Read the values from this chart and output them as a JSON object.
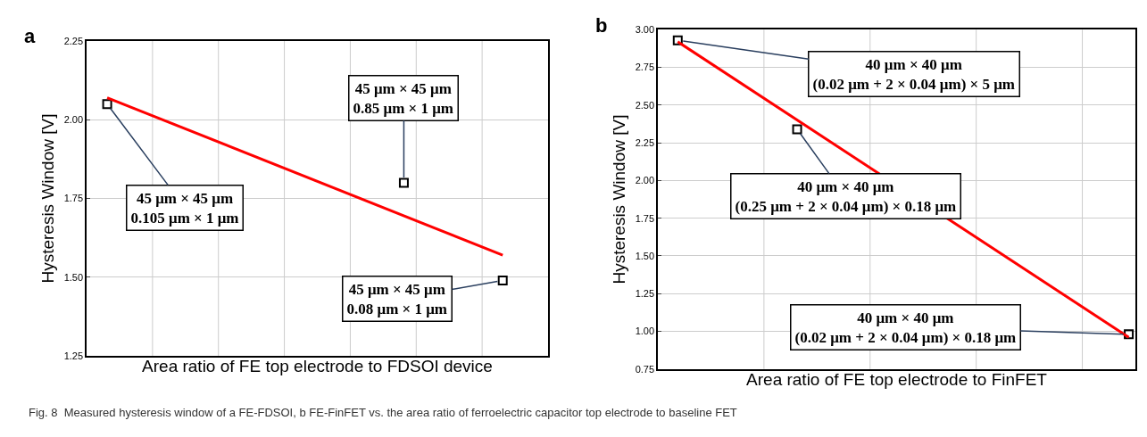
{
  "chart_data": [
    {
      "type": "scatter",
      "title": "a",
      "xlabel": "Area ratio of FE top electrode to FDSOI device",
      "ylabel": "Hysteresis Window [V]",
      "categories": [
        null,
        null,
        null,
        null,
        null,
        null,
        null,
        null,
        null,
        null,
        null,
        null,
        null,
        null,
        null,
        null,
        null,
        null,
        null,
        null,
        null,
        null,
        null,
        null,
        null,
        null,
        null,
        null,
        null,
        null,
        null,
        null,
        null,
        null,
        null,
        null,
        null,
        null,
        null,
        null,
        null,
        null,
        null,
        null,
        null,
        null,
        null,
        null,
        null,
        null,
        null,
        null,
        null,
        null,
        null,
        null
      ],
      "series": [
        {
          "type": "scatter",
          "color": "#000000",
          "marker": "square",
          "values": [
            null,
            null,
            2.05,
            null,
            null,
            null,
            null,
            null,
            null,
            null,
            null,
            null,
            null,
            null,
            null,
            null,
            null,
            null,
            null,
            null,
            null,
            null,
            null,
            null,
            null,
            null,
            null,
            null,
            null,
            null,
            null,
            null,
            null,
            null,
            null,
            null,
            null,
            null,
            1.8,
            null,
            null,
            null,
            null,
            null,
            null,
            null,
            null,
            null,
            null,
            null,
            1.49,
            null,
            null,
            null,
            null,
            null
          ]
        },
        {
          "type": "line",
          "color": "#ff0000",
          "marker": "none",
          "values": [
            null,
            null,
            2.07,
            null,
            null,
            null,
            null,
            null,
            null,
            null,
            null,
            null,
            null,
            null,
            null,
            null,
            null,
            null,
            null,
            null,
            null,
            null,
            null,
            null,
            null,
            null,
            null,
            null,
            null,
            null,
            null,
            null,
            null,
            null,
            null,
            null,
            null,
            null,
            null,
            null,
            null,
            null,
            null,
            null,
            null,
            null,
            null,
            null,
            null,
            null,
            1.57,
            null,
            null,
            null,
            null,
            null
          ]
        }
      ],
      "ylim": [
        1.25,
        2.25
      ],
      "yticks": [
        {
          "value": 1.25,
          "label": "1.25"
        },
        {
          "value": 1.5,
          "label": "1.50"
        },
        {
          "value": 1.75,
          "label": "1.75"
        },
        {
          "value": 2.0,
          "label": "2.00"
        },
        {
          "value": 2.25,
          "label": "2.25"
        }
      ],
      "tick_labels": "y",
      "grid": true,
      "annotations": [
        "45 μm × 45 μm\n0.105 μm × 1 μm",
        "45 μm × 45 μm\n0.85 μm × 1 μm",
        "45 μm × 45 μm\n0.08 μm × 1 μm"
      ]
    },
    {
      "type": "scatter",
      "title": "b",
      "xlabel": "Area ratio of FE top electrode to FinFET",
      "ylabel": "Hysteresis Window [V]",
      "categories": [
        null,
        null,
        null,
        null,
        null,
        null,
        null,
        null,
        null,
        null,
        null,
        null,
        null,
        null,
        null,
        null,
        null,
        null,
        null,
        null,
        null,
        null,
        null,
        null,
        null,
        null,
        null,
        null,
        null,
        null,
        null,
        null,
        null,
        null,
        null,
        null
      ],
      "series": [
        {
          "type": "scatter",
          "color": "#000000",
          "marker": "square",
          "values": [
            null,
            2.93,
            null,
            null,
            null,
            null,
            null,
            null,
            null,
            null,
            2.34,
            null,
            null,
            null,
            null,
            null,
            null,
            null,
            null,
            null,
            null,
            null,
            null,
            null,
            null,
            null,
            null,
            null,
            null,
            null,
            null,
            null,
            null,
            null,
            null,
            0.98
          ]
        },
        {
          "type": "line",
          "color": "#ff0000",
          "marker": "none",
          "values": [
            null,
            2.92,
            null,
            null,
            null,
            null,
            null,
            null,
            null,
            null,
            null,
            null,
            null,
            null,
            null,
            null,
            null,
            null,
            null,
            null,
            null,
            null,
            null,
            null,
            null,
            null,
            null,
            null,
            null,
            null,
            null,
            null,
            null,
            null,
            null,
            0.96
          ]
        }
      ],
      "ylim": [
        0.75,
        3.0
      ],
      "yticks": [
        {
          "value": 0.75,
          "label": "0.75"
        },
        {
          "value": 1.0,
          "label": "1.00"
        },
        {
          "value": 1.25,
          "label": "1.25"
        },
        {
          "value": 1.5,
          "label": "1.50"
        },
        {
          "value": 1.75,
          "label": "1.75"
        },
        {
          "value": 2.0,
          "label": "2.00"
        },
        {
          "value": 2.25,
          "label": "2.25"
        },
        {
          "value": 2.5,
          "label": "2.50"
        },
        {
          "value": 2.75,
          "label": "2.75"
        },
        {
          "value": 3.0,
          "label": "3.00"
        }
      ],
      "tick_labels": "y",
      "grid": true,
      "annotations": [
        "40 μm × 40 μm\n(0.02 μm + 2 × 0.04 μm) × 5 μm",
        "40 μm × 40 μm\n(0.25 μm + 2 × 0.04 μm) × 0.18 μm",
        "40 μm × 40 μm\n(0.02 μm + 2 × 0.04 μm) × 0.18 μm",
        "Fig. 8  Measured hysteresis window of a FE-FDSOI, b FE-FinFET vs. the area ratio of ferroelectric capacitor top electrode to baseline FET"
      ]
    }
  ]
}
